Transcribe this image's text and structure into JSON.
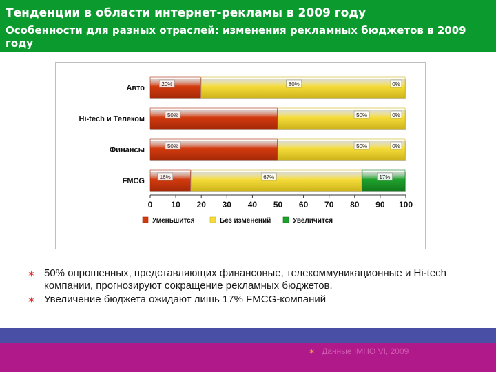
{
  "header": {
    "title": "Тенденции в области интернет-рекламы в 2009 году",
    "subtitle": "Особенности для разных отраслей: изменения рекламных бюджетов в 2009 году"
  },
  "colors": {
    "header_bg": "#0b9a2e",
    "decrease": "#d23a0e",
    "no_change": "#f5dc3a",
    "increase": "#1ea22b",
    "band_blue": "#4a4fa6",
    "band_magenta": "#b0198a"
  },
  "chart_data": {
    "type": "bar",
    "orientation": "horizontal",
    "stacked": true,
    "categories": [
      "Авто",
      "Hi-tech и Телеком",
      "Финансы",
      "FMCG"
    ],
    "series": [
      {
        "name": "Уменьшится",
        "values": [
          20,
          50,
          50,
          16
        ],
        "labels": [
          "20%",
          "50%",
          "50%",
          "16%"
        ]
      },
      {
        "name": "Без изменений",
        "values": [
          80,
          50,
          50,
          67
        ],
        "labels": [
          "80%",
          "50%",
          "50%",
          "67%"
        ]
      },
      {
        "name": "Увеличится",
        "values": [
          0,
          0,
          0,
          17
        ],
        "labels": [
          "0%",
          "0%",
          "0%",
          "17%"
        ]
      }
    ],
    "xticks": [
      "0",
      "10",
      "20",
      "30",
      "40",
      "50",
      "60",
      "70",
      "80",
      "90",
      "100"
    ],
    "xlim": [
      0,
      100
    ],
    "legend_position": "bottom",
    "grid": false
  },
  "bullets": [
    "50% опрошенных, представляющих финансовые, телекоммуникационные и Hi-tech компании, прогнозируют сокращение рекламных бюджетов.",
    "Увеличение бюджета ожидают лишь 17% FMCG-компаний"
  ],
  "footer": {
    "source": "Данные IMHO VI, 2009"
  }
}
